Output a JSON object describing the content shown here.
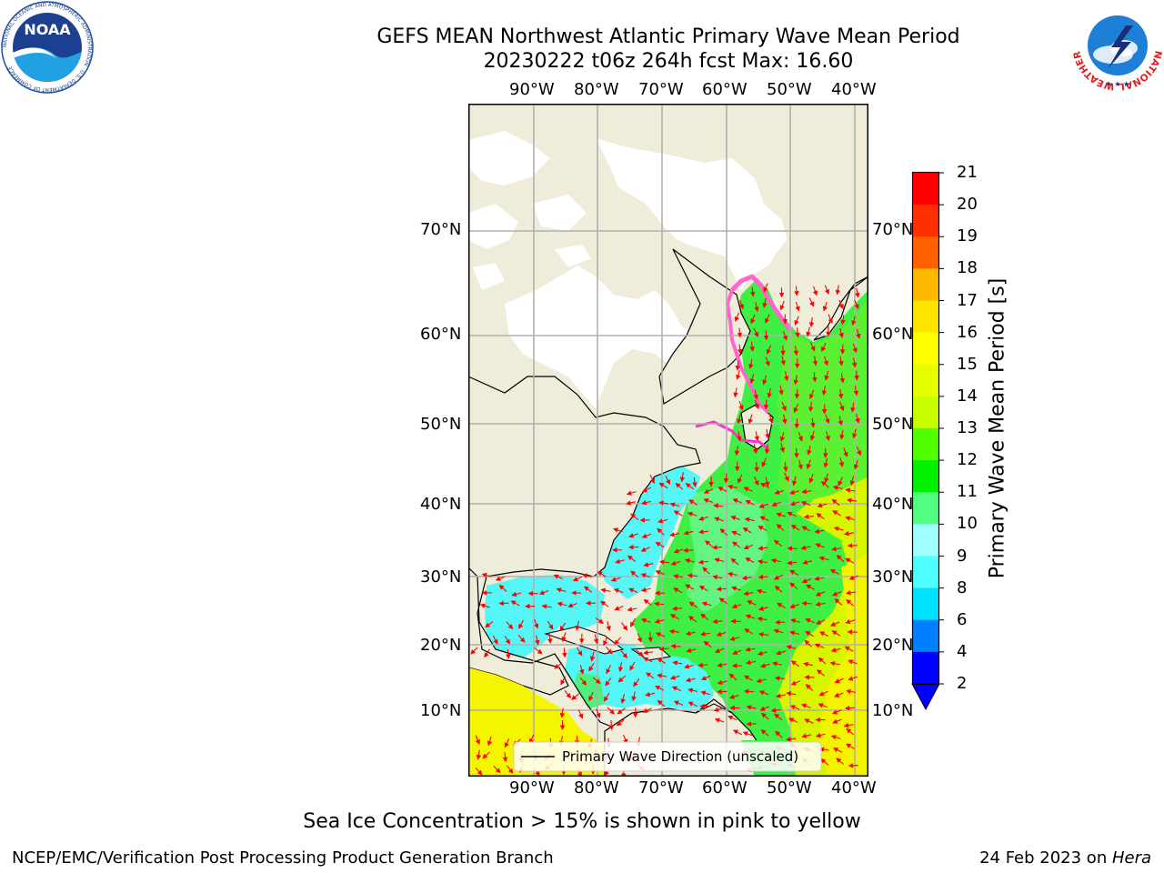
{
  "header": {
    "title_line1": "GEFS MEAN Northwest Atlantic Primary Wave Mean Period",
    "title_line2": "20230222 t06z 264h fcst   Max: 16.60"
  },
  "logos": {
    "noaa": {
      "text": "NOAA",
      "ring": "NATIONAL OCEANIC AND ATMOSPHERIC ADMINISTRATION · U.S. DEPARTMENT OF COMMERCE"
    },
    "nws": {
      "ring": "NATIONAL WEATHER SERVICE"
    }
  },
  "map": {
    "lon_labels": [
      "90°W",
      "80°W",
      "70°W",
      "60°W",
      "50°W",
      "40°W"
    ],
    "lat_labels": [
      "70°N",
      "60°N",
      "50°N",
      "40°N",
      "30°N",
      "20°N",
      "10°N"
    ],
    "legend_label": "Primary Wave Direction (unscaled)",
    "colors": {
      "land": "#efedda",
      "ice": "#ffffff",
      "arrow": "#ff0000",
      "grid": "#b0b0b0"
    }
  },
  "colorbar": {
    "label": "Primary Wave Mean Period [s]",
    "ticks": [
      "21",
      "20",
      "19",
      "18",
      "17",
      "16",
      "15",
      "14",
      "13",
      "12",
      "11",
      "10",
      "9",
      "8",
      "6",
      "4",
      "2"
    ],
    "colors": [
      "#ff0000",
      "#ff3000",
      "#ff6000",
      "#ff9000",
      "#ffb800",
      "#ffe400",
      "#ffff00",
      "#e6ff00",
      "#c8ff00",
      "#8cff00",
      "#50ff00",
      "#00f000",
      "#50ff80",
      "#a0ffff",
      "#50ffff",
      "#00ffff",
      "#00e0ff",
      "#0080ff",
      "#0000ff"
    ]
  },
  "notes": {
    "ice": "Sea Ice Concentration > 15% is shown in pink to yellow"
  },
  "footer": {
    "left": "NCEP/EMC/Verification Post Processing Product Generation Branch",
    "date": "24 Feb 2023 on ",
    "host": "Hera"
  }
}
